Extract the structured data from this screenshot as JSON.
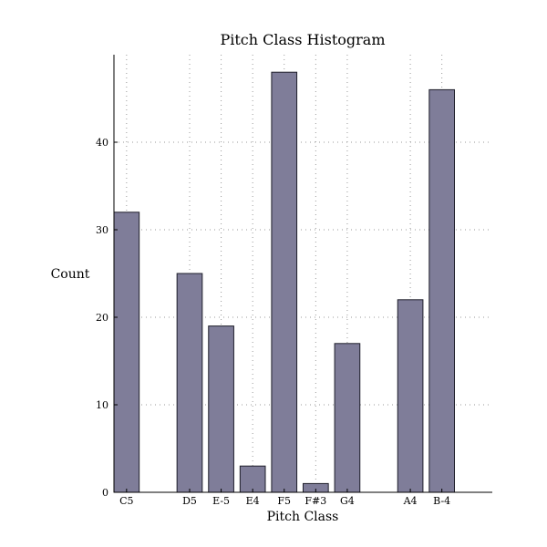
{
  "chart_data": {
    "type": "bar",
    "title": "Pitch Class Histogram",
    "xlabel": "Pitch Class",
    "ylabel": "Count",
    "categories": [
      "C5",
      "D5",
      "E-5",
      "E4",
      "F5",
      "F#3",
      "G4",
      "A4",
      "B-4"
    ],
    "x": [
      0,
      2,
      3,
      4,
      5,
      6,
      7,
      9,
      10
    ],
    "values": [
      32,
      25,
      19,
      3,
      48,
      1,
      17,
      22,
      46
    ],
    "xlim": [
      0,
      12
    ],
    "ylim": [
      0,
      50
    ],
    "yticks": [
      0,
      10,
      20,
      30,
      40
    ],
    "grid": true,
    "bar_color": "#7f7d99",
    "bar_edge_color": "#1e1e2a",
    "grid_color": "#9a9a9a"
  }
}
